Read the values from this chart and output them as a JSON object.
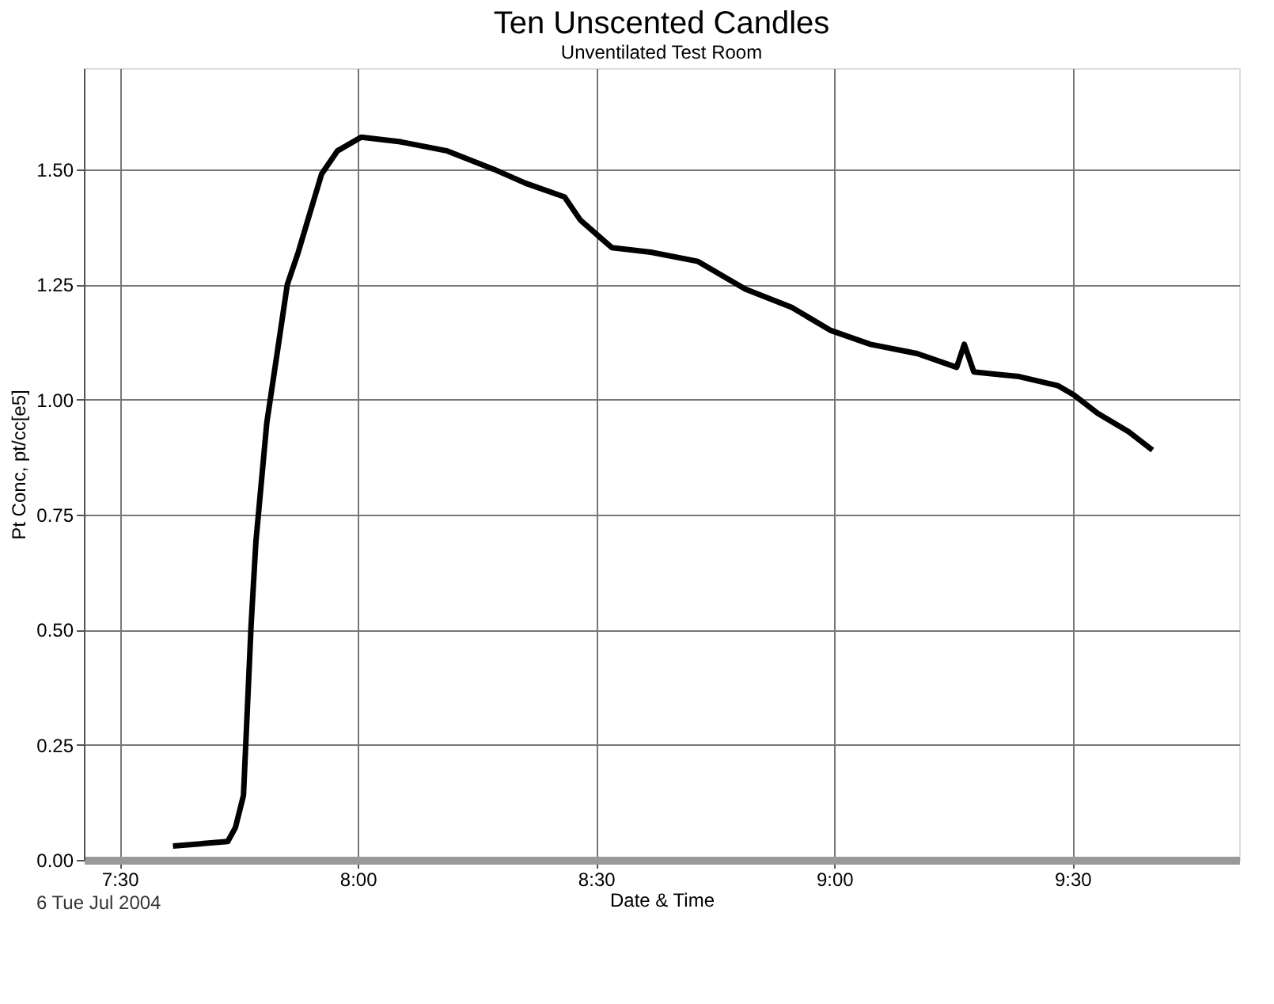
{
  "chart_data": {
    "type": "line",
    "title": "Ten Unscented Candles",
    "subtitle": "Unventilated Test Room",
    "xlabel": "Date & Time",
    "ylabel": "Pt Conc, pt/cc[e5]",
    "annotations": [
      "6 Tue Jul 2004"
    ],
    "series": [
      {
        "color": "#000000",
        "x": [
          7.612,
          7.727,
          7.743,
          7.76,
          7.776,
          7.786,
          7.809,
          7.832,
          7.852,
          7.875,
          7.898,
          7.924,
          7.957,
          8.007,
          8.089,
          8.188,
          8.286,
          8.352,
          8.434,
          8.467,
          8.533,
          8.615,
          8.714,
          8.813,
          8.911,
          8.993,
          9.076,
          9.174,
          9.257,
          9.273,
          9.293,
          9.388,
          9.47,
          9.503,
          9.553,
          9.618,
          9.668
        ],
        "values": [
          0.03,
          0.04,
          0.07,
          0.14,
          0.51,
          0.69,
          0.95,
          1.11,
          1.25,
          1.32,
          1.4,
          1.49,
          1.54,
          1.57,
          1.56,
          1.54,
          1.5,
          1.47,
          1.44,
          1.39,
          1.33,
          1.32,
          1.3,
          1.24,
          1.2,
          1.15,
          1.12,
          1.1,
          1.07,
          1.12,
          1.06,
          1.05,
          1.03,
          1.01,
          0.97,
          0.93,
          0.89
        ]
      }
    ],
    "xlim": [
      7.425,
      9.85
    ],
    "ylim": [
      0,
      1.72
    ],
    "xticks": [
      {
        "value": 7.5,
        "label": "7:30"
      },
      {
        "value": 8.0,
        "label": "8:00"
      },
      {
        "value": 8.5,
        "label": "8:30"
      },
      {
        "value": 9.0,
        "label": "9:00"
      },
      {
        "value": 9.5,
        "label": "9:30"
      }
    ],
    "yticks": [
      {
        "value": 0,
        "label": "0.00"
      },
      {
        "value": 0.25,
        "label": "0.25"
      },
      {
        "value": 0.5,
        "label": "0.50"
      },
      {
        "value": 0.75,
        "label": "0.75"
      },
      {
        "value": 1.0,
        "label": "1.00"
      },
      {
        "value": 1.25,
        "label": "1.25"
      },
      {
        "value": 1.5,
        "label": "1.50"
      }
    ],
    "grid": true,
    "legend": false,
    "marker": "none",
    "line_style": "solid"
  }
}
